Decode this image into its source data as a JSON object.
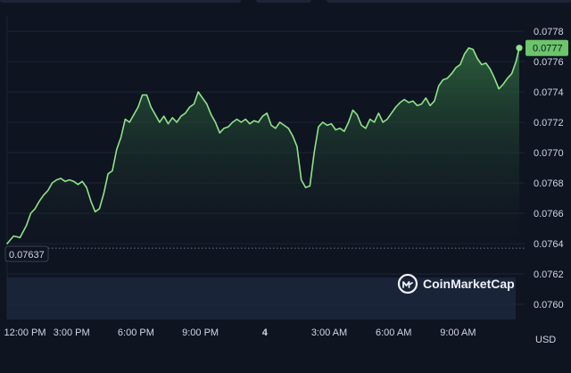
{
  "chart_data": {
    "type": "area",
    "title": "",
    "xlabel": "",
    "ylabel": "",
    "currency_label": "USD",
    "ylim": [
      0.0759,
      0.0779
    ],
    "y_ticks": [
      "0.0778",
      "0.0776",
      "0.0774",
      "0.0772",
      "0.0770",
      "0.0768",
      "0.0766",
      "0.0764",
      "0.0762",
      "0.0760"
    ],
    "y_tick_values": [
      0.0778,
      0.0776,
      0.0774,
      0.0772,
      0.077,
      0.0768,
      0.0766,
      0.0764,
      0.0762,
      0.076
    ],
    "x_ticks": [
      "12:00 PM",
      "3:00 PM",
      "6:00 PM",
      "9:00 PM",
      "4",
      "3:00 AM",
      "6:00 AM",
      "9:00 AM"
    ],
    "x_tick_hours": [
      0,
      3,
      6,
      9,
      12,
      15,
      18,
      21
    ],
    "xlim_hours": [
      0,
      24.1
    ],
    "current_price": "0.0777",
    "current_price_value": 0.07769,
    "open_price": "0.07637",
    "open_price_value": 0.07637,
    "grid": true,
    "watermark": "CoinMarketCap",
    "colors": {
      "line": "#8fe38a",
      "area_top": "#2f6a3f",
      "area_bottom": "#0f1421",
      "grid": "#1d2433",
      "label_bg": "#6cc46b",
      "volume": "#1d2a40",
      "text": "#cfd6e4",
      "dotted": "#6f7684"
    },
    "series": [
      {
        "values": [
          [
            0.0,
            0.0764
          ],
          [
            0.3,
            0.07645
          ],
          [
            0.6,
            0.07644
          ],
          [
            0.9,
            0.07652
          ],
          [
            1.1,
            0.0766
          ],
          [
            1.3,
            0.07663
          ],
          [
            1.5,
            0.07668
          ],
          [
            1.7,
            0.07672
          ],
          [
            1.9,
            0.07675
          ],
          [
            2.1,
            0.0768
          ],
          [
            2.3,
            0.07682
          ],
          [
            2.5,
            0.07683
          ],
          [
            2.7,
            0.07681
          ],
          [
            2.9,
            0.07682
          ],
          [
            3.1,
            0.07681
          ],
          [
            3.3,
            0.07679
          ],
          [
            3.5,
            0.07681
          ],
          [
            3.7,
            0.07677
          ],
          [
            3.9,
            0.07668
          ],
          [
            4.1,
            0.07661
          ],
          [
            4.3,
            0.07663
          ],
          [
            4.5,
            0.07673
          ],
          [
            4.7,
            0.07686
          ],
          [
            4.9,
            0.07688
          ],
          [
            5.1,
            0.07702
          ],
          [
            5.3,
            0.0771
          ],
          [
            5.5,
            0.07722
          ],
          [
            5.7,
            0.0772
          ],
          [
            5.9,
            0.07725
          ],
          [
            6.1,
            0.0773
          ],
          [
            6.3,
            0.07738
          ],
          [
            6.5,
            0.07738
          ],
          [
            6.7,
            0.0773
          ],
          [
            6.9,
            0.07725
          ],
          [
            7.1,
            0.0772
          ],
          [
            7.3,
            0.07724
          ],
          [
            7.5,
            0.07719
          ],
          [
            7.7,
            0.07723
          ],
          [
            7.9,
            0.0772
          ],
          [
            8.1,
            0.07724
          ],
          [
            8.3,
            0.07726
          ],
          [
            8.5,
            0.0773
          ],
          [
            8.7,
            0.07732
          ],
          [
            8.9,
            0.0774
          ],
          [
            9.1,
            0.07736
          ],
          [
            9.3,
            0.07732
          ],
          [
            9.5,
            0.07725
          ],
          [
            9.7,
            0.0772
          ],
          [
            9.9,
            0.07713
          ],
          [
            10.1,
            0.07716
          ],
          [
            10.3,
            0.07717
          ],
          [
            10.5,
            0.0772
          ],
          [
            10.7,
            0.07722
          ],
          [
            10.9,
            0.0772
          ],
          [
            11.1,
            0.07722
          ],
          [
            11.3,
            0.07719
          ],
          [
            11.5,
            0.07721
          ],
          [
            11.7,
            0.0772
          ],
          [
            11.9,
            0.07724
          ],
          [
            12.1,
            0.07726
          ],
          [
            12.3,
            0.07718
          ],
          [
            12.5,
            0.07716
          ],
          [
            12.7,
            0.0772
          ],
          [
            12.9,
            0.07718
          ],
          [
            13.1,
            0.07716
          ],
          [
            13.3,
            0.07711
          ],
          [
            13.5,
            0.07704
          ],
          [
            13.7,
            0.07682
          ],
          [
            13.9,
            0.07677
          ],
          [
            14.1,
            0.07678
          ],
          [
            14.3,
            0.077
          ],
          [
            14.5,
            0.07717
          ],
          [
            14.7,
            0.0772
          ],
          [
            14.9,
            0.07718
          ],
          [
            15.1,
            0.07719
          ],
          [
            15.3,
            0.07715
          ],
          [
            15.5,
            0.07716
          ],
          [
            15.7,
            0.07714
          ],
          [
            15.9,
            0.0772
          ],
          [
            16.1,
            0.07728
          ],
          [
            16.3,
            0.07725
          ],
          [
            16.5,
            0.07718
          ],
          [
            16.7,
            0.07716
          ],
          [
            16.9,
            0.07722
          ],
          [
            17.1,
            0.0772
          ],
          [
            17.3,
            0.07726
          ],
          [
            17.5,
            0.0772
          ],
          [
            17.7,
            0.07722
          ],
          [
            17.9,
            0.07726
          ],
          [
            18.1,
            0.0773
          ],
          [
            18.3,
            0.07733
          ],
          [
            18.5,
            0.07735
          ],
          [
            18.7,
            0.07733
          ],
          [
            18.9,
            0.07734
          ],
          [
            19.1,
            0.07731
          ],
          [
            19.3,
            0.07732
          ],
          [
            19.5,
            0.07736
          ],
          [
            19.7,
            0.07731
          ],
          [
            19.9,
            0.07734
          ],
          [
            20.1,
            0.07744
          ],
          [
            20.3,
            0.07748
          ],
          [
            20.5,
            0.07749
          ],
          [
            20.7,
            0.07752
          ],
          [
            20.9,
            0.07756
          ],
          [
            21.1,
            0.07758
          ],
          [
            21.3,
            0.07765
          ],
          [
            21.5,
            0.07769
          ],
          [
            21.7,
            0.07768
          ],
          [
            21.9,
            0.07762
          ],
          [
            22.1,
            0.07758
          ],
          [
            22.3,
            0.07759
          ],
          [
            22.5,
            0.07755
          ],
          [
            22.7,
            0.07749
          ],
          [
            22.9,
            0.07742
          ],
          [
            23.1,
            0.07745
          ],
          [
            23.3,
            0.07749
          ],
          [
            23.5,
            0.07752
          ],
          [
            23.7,
            0.0776
          ],
          [
            23.85,
            0.07769
          ]
        ]
      }
    ]
  }
}
